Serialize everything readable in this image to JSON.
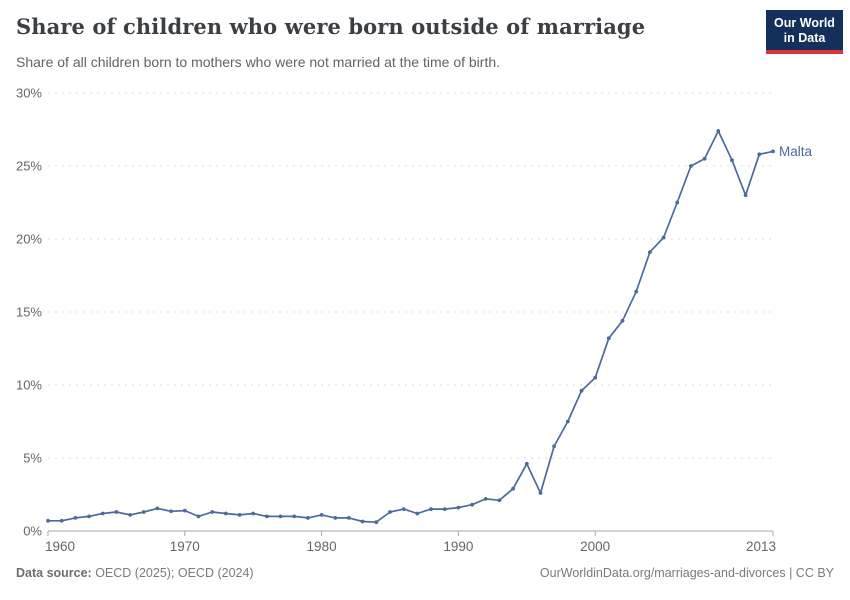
{
  "header": {
    "title": "Share of children who were born outside of marriage",
    "subtitle": "Share of all children born to mothers who were not married at the time of birth.",
    "logo": {
      "line1": "Our World",
      "line2": "in Data",
      "background_color": "#12305a",
      "accent_color": "#d8353c"
    }
  },
  "chart_data": {
    "type": "line",
    "title": "Share of children who were born outside of marriage",
    "xlabel": "",
    "ylabel": "",
    "xlim": [
      1960,
      2013
    ],
    "ylim": [
      0,
      30
    ],
    "x_ticks": [
      1960,
      1970,
      1980,
      1990,
      2000,
      2013
    ],
    "y_ticks": [
      0,
      5,
      10,
      15,
      20,
      25,
      30
    ],
    "y_tick_suffix": "%",
    "grid": "horizontal-dashed",
    "legend_position": "end-of-line-label",
    "series": [
      {
        "name": "Malta",
        "color": "#4C6A9C",
        "x": [
          1960,
          1961,
          1962,
          1963,
          1964,
          1965,
          1966,
          1967,
          1968,
          1969,
          1970,
          1971,
          1972,
          1973,
          1974,
          1975,
          1976,
          1977,
          1978,
          1979,
          1980,
          1981,
          1982,
          1983,
          1984,
          1985,
          1986,
          1987,
          1988,
          1989,
          1990,
          1991,
          1992,
          1993,
          1994,
          1995,
          1996,
          1997,
          1998,
          1999,
          2000,
          2001,
          2002,
          2003,
          2004,
          2005,
          2006,
          2007,
          2008,
          2009,
          2010,
          2011,
          2012,
          2013
        ],
        "values": [
          0.7,
          0.7,
          0.9,
          1.0,
          1.2,
          1.3,
          1.1,
          1.3,
          1.55,
          1.35,
          1.4,
          1.0,
          1.3,
          1.2,
          1.1,
          1.2,
          1.0,
          1.0,
          1.0,
          0.9,
          1.1,
          0.9,
          0.9,
          0.65,
          0.6,
          1.3,
          1.5,
          1.2,
          1.5,
          1.5,
          1.6,
          1.8,
          2.2,
          2.1,
          2.9,
          4.6,
          2.6,
          5.8,
          7.5,
          9.6,
          10.5,
          13.2,
          14.4,
          16.4,
          19.1,
          20.1,
          22.5,
          25.0,
          25.5,
          27.4,
          25.4,
          23.0,
          25.8,
          26.0
        ]
      }
    ],
    "colors": {
      "gridline": "#dcdcdc",
      "axis_line": "#a8a8a8",
      "tick_label": "#666666"
    }
  },
  "footer": {
    "source_label": "Data source:",
    "source_value": " OECD (2025); OECD (2024)",
    "attribution": "OurWorldinData.org/marriages-and-divorces | CC BY"
  }
}
